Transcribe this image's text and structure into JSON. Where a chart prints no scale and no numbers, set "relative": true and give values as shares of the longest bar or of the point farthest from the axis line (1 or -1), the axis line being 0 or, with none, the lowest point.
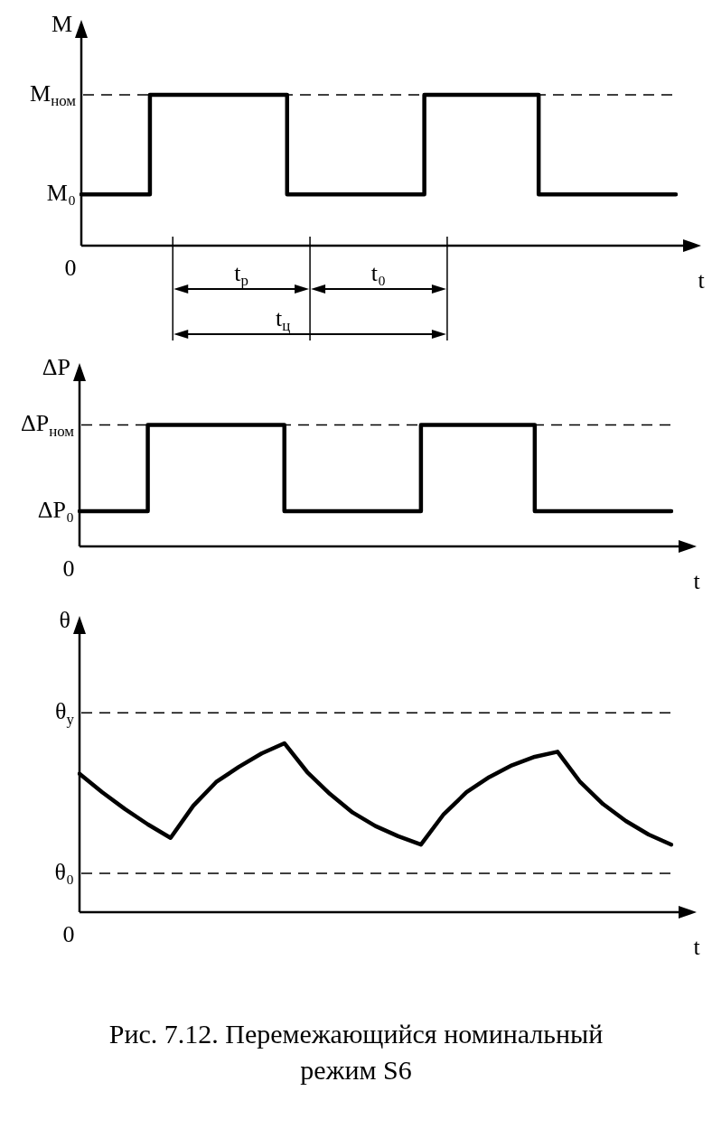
{
  "chart_data": [
    {
      "type": "step",
      "relative": true,
      "ylabel": "M",
      "xlabel": "t",
      "categories": [
        null,
        null,
        null,
        null,
        null,
        null,
        null,
        null,
        null,
        null,
        null,
        null,
        null,
        null,
        null,
        null,
        null,
        null,
        null,
        null,
        null,
        null,
        null,
        null,
        null,
        null,
        null
      ],
      "series": [
        {
          "color": "#000000",
          "values": [
            0.34,
            0.34,
            0.34,
            0.34,
            1,
            1,
            1,
            1,
            1,
            1,
            0.34,
            0.34,
            0.34,
            0.34,
            0.34,
            0.34,
            1,
            1,
            1,
            1,
            1,
            0.34,
            0.34,
            0.34,
            0.34,
            0.34,
            0.34
          ]
        }
      ],
      "ref_lines": [
        {
          "axis": "y",
          "value": 1,
          "label": "M$_{ном}$",
          "line_style": "dashed"
        }
      ],
      "annotations": [
        "0",
        "M₀",
        "t$_{р}$",
        "t₀",
        "t$_{ц}$"
      ]
    },
    {
      "type": "step",
      "relative": true,
      "ylabel": "ΔP",
      "xlabel": "t",
      "categories": [
        null,
        null,
        null,
        null,
        null,
        null,
        null,
        null,
        null,
        null,
        null,
        null,
        null,
        null,
        null,
        null,
        null,
        null,
        null,
        null,
        null,
        null,
        null,
        null,
        null,
        null,
        null
      ],
      "series": [
        {
          "color": "#000000",
          "values": [
            0.29,
            0.29,
            0.29,
            0.29,
            1,
            1,
            1,
            1,
            1,
            1,
            0.29,
            0.29,
            0.29,
            0.29,
            0.29,
            0.29,
            1,
            1,
            1,
            1,
            1,
            0.29,
            0.29,
            0.29,
            0.29,
            0.29,
            0.29
          ]
        }
      ],
      "ref_lines": [
        {
          "axis": "y",
          "value": 1,
          "label": "ΔP$_{ном}$",
          "line_style": "dashed"
        }
      ],
      "annotations": [
        "0",
        "ΔP₀"
      ]
    },
    {
      "type": "line",
      "relative": true,
      "ylabel": "θ",
      "xlabel": "t",
      "categories": [
        null,
        null,
        null,
        null,
        null,
        null,
        null,
        null,
        null,
        null,
        null,
        null,
        null,
        null,
        null,
        null,
        null,
        null,
        null,
        null,
        null,
        null,
        null,
        null,
        null,
        null,
        null
      ],
      "series": [
        {
          "color": "#000000",
          "values": [
            0.82,
            0.71,
            0.61,
            0.52,
            0.44,
            0.63,
            0.77,
            0.86,
            0.94,
            1,
            0.83,
            0.7,
            0.59,
            0.51,
            0.45,
            0.4,
            0.58,
            0.71,
            0.8,
            0.87,
            0.92,
            0.95,
            0.77,
            0.64,
            0.54,
            0.46,
            0.4
          ]
        }
      ],
      "ref_lines": [
        {
          "axis": "y",
          "value": 1.18,
          "label": "θ$_{у}$",
          "line_style": "dashed"
        },
        {
          "axis": "y",
          "value": 0.23,
          "label": "θ₀",
          "line_style": "dashed"
        }
      ],
      "annotations": [
        "0",
        "Рис. 7.12. Перемежающийся номинальный режим S6"
      ]
    }
  ]
}
